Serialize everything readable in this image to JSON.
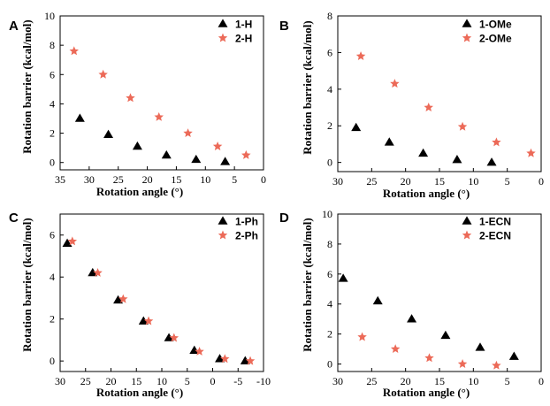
{
  "colors": {
    "series1": "#000000",
    "series2": "#ec6a58",
    "axis": "#000000"
  },
  "chart_data": [
    {
      "type": "scatter",
      "panel": "A",
      "xlabel": "Rotation angle (°)",
      "ylabel": "Rotation barrier (kcal/mol)",
      "xlim": [
        35,
        0
      ],
      "xreversed": true,
      "xticks": [
        35,
        30,
        25,
        20,
        15,
        10,
        5,
        0
      ],
      "ylim": [
        -0.5,
        10
      ],
      "yticks": [
        0,
        2,
        4,
        6,
        8,
        10
      ],
      "legend_position": "top-right",
      "series": [
        {
          "name": "1-H",
          "marker": "triangle",
          "x": [
            31.6,
            26.7,
            21.7,
            16.7,
            11.6,
            6.6
          ],
          "y": [
            3.0,
            1.9,
            1.1,
            0.5,
            0.2,
            0.05
          ]
        },
        {
          "name": "2-H",
          "marker": "star",
          "x": [
            32.6,
            27.6,
            22.9,
            18.0,
            13.0,
            7.9,
            3.0
          ],
          "y": [
            7.6,
            6.0,
            4.4,
            3.1,
            2.0,
            1.1,
            0.5
          ]
        }
      ]
    },
    {
      "type": "scatter",
      "panel": "B",
      "xlabel": "Rotation angle (°)",
      "ylabel": "Rotation barrier (kcal/mol)",
      "xlim": [
        30,
        0
      ],
      "xreversed": true,
      "xticks": [
        30,
        25,
        20,
        15,
        10,
        5,
        0
      ],
      "ylim": [
        -0.5,
        8
      ],
      "yticks": [
        0,
        2,
        4,
        6,
        8
      ],
      "legend_position": "top-right",
      "series": [
        {
          "name": "1-OMe",
          "marker": "triangle",
          "x": [
            27.3,
            22.4,
            17.4,
            12.4,
            7.3
          ],
          "y": [
            1.9,
            1.1,
            0.5,
            0.15,
            0.0
          ]
        },
        {
          "name": "2-OMe",
          "marker": "star",
          "x": [
            26.6,
            21.6,
            16.6,
            11.6,
            6.6,
            1.5
          ],
          "y": [
            5.8,
            4.3,
            3.0,
            1.95,
            1.1,
            0.5
          ]
        }
      ]
    },
    {
      "type": "scatter",
      "panel": "C",
      "xlabel": "Rotation angle (°)",
      "ylabel": "Rotation barrier (kcal/mol)",
      "xlim": [
        30,
        -10
      ],
      "xreversed": true,
      "xticks": [
        30,
        25,
        20,
        15,
        10,
        5,
        0,
        -5,
        -10
      ],
      "ylim": [
        -0.5,
        7
      ],
      "yticks": [
        0,
        2,
        4,
        6
      ],
      "legend_position": "top-right",
      "series": [
        {
          "name": "1-Ph",
          "marker": "triangle",
          "x": [
            28.6,
            23.6,
            18.6,
            13.6,
            8.6,
            3.6,
            -1.4,
            -6.4
          ],
          "y": [
            5.6,
            4.2,
            2.9,
            1.9,
            1.1,
            0.5,
            0.1,
            0.0
          ]
        },
        {
          "name": "2-Ph",
          "marker": "star",
          "x": [
            27.6,
            22.6,
            17.6,
            12.6,
            7.6,
            2.6,
            -2.4,
            -7.4
          ],
          "y": [
            5.7,
            4.2,
            2.95,
            1.9,
            1.1,
            0.45,
            0.1,
            0.0
          ]
        }
      ]
    },
    {
      "type": "scatter",
      "panel": "D",
      "xlabel": "Rotation angle (°)",
      "ylabel": "Rotation barrier (kcal/mol)",
      "xlim": [
        30,
        0
      ],
      "xreversed": true,
      "xticks": [
        30,
        25,
        20,
        15,
        10,
        5,
        0
      ],
      "ylim": [
        -0.5,
        10
      ],
      "yticks": [
        0,
        2,
        4,
        6,
        8,
        10
      ],
      "legend_position": "top-right",
      "series": [
        {
          "name": "1-ECN",
          "marker": "triangle",
          "x": [
            29.2,
            24.1,
            19.1,
            14.1,
            9.0,
            4.0
          ],
          "y": [
            5.7,
            4.2,
            3.0,
            1.9,
            1.1,
            0.5
          ]
        },
        {
          "name": "2-ECN",
          "marker": "star",
          "x": [
            26.4,
            21.5,
            16.5,
            11.6,
            6.6
          ],
          "y": [
            1.8,
            1.0,
            0.4,
            0.0,
            -0.1
          ]
        }
      ]
    }
  ]
}
